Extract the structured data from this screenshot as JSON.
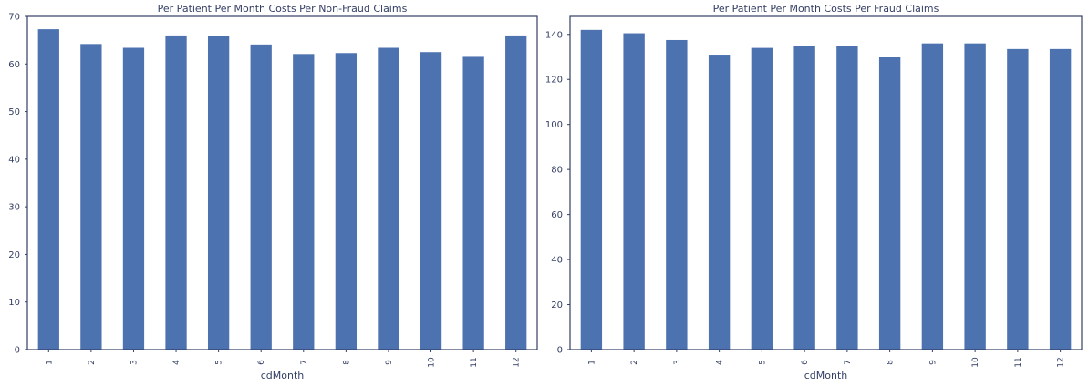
{
  "chart_data": [
    {
      "type": "bar",
      "title": "Per Patient Per Month Costs Per Non-Fraud Claims",
      "xlabel": "cdMonth",
      "ylabel": "",
      "categories": [
        "1",
        "2",
        "3",
        "4",
        "5",
        "6",
        "7",
        "8",
        "9",
        "10",
        "11",
        "12"
      ],
      "values": [
        67.3,
        64.2,
        63.4,
        66.0,
        65.8,
        64.1,
        62.1,
        62.3,
        63.4,
        62.5,
        61.5,
        66.0
      ],
      "ylim": [
        0,
        70
      ],
      "yticks": [
        0,
        10,
        20,
        30,
        40,
        50,
        60,
        70
      ],
      "bar_color": "#4c72b0",
      "grid": false,
      "legend": "none"
    },
    {
      "type": "bar",
      "title": "Per Patient Per Month Costs Per Fraud Claims",
      "xlabel": "cdMonth",
      "ylabel": "",
      "categories": [
        "1",
        "2",
        "3",
        "4",
        "5",
        "6",
        "7",
        "8",
        "9",
        "10",
        "11",
        "12"
      ],
      "values": [
        142,
        140.5,
        137.5,
        131,
        134,
        135,
        134.8,
        129.8,
        136,
        136,
        133.5,
        133.5
      ],
      "ylim": [
        0,
        148
      ],
      "yticks": [
        0,
        20,
        40,
        60,
        80,
        100,
        120,
        140
      ],
      "bar_color": "#4c72b0",
      "grid": false,
      "legend": "none"
    }
  ]
}
